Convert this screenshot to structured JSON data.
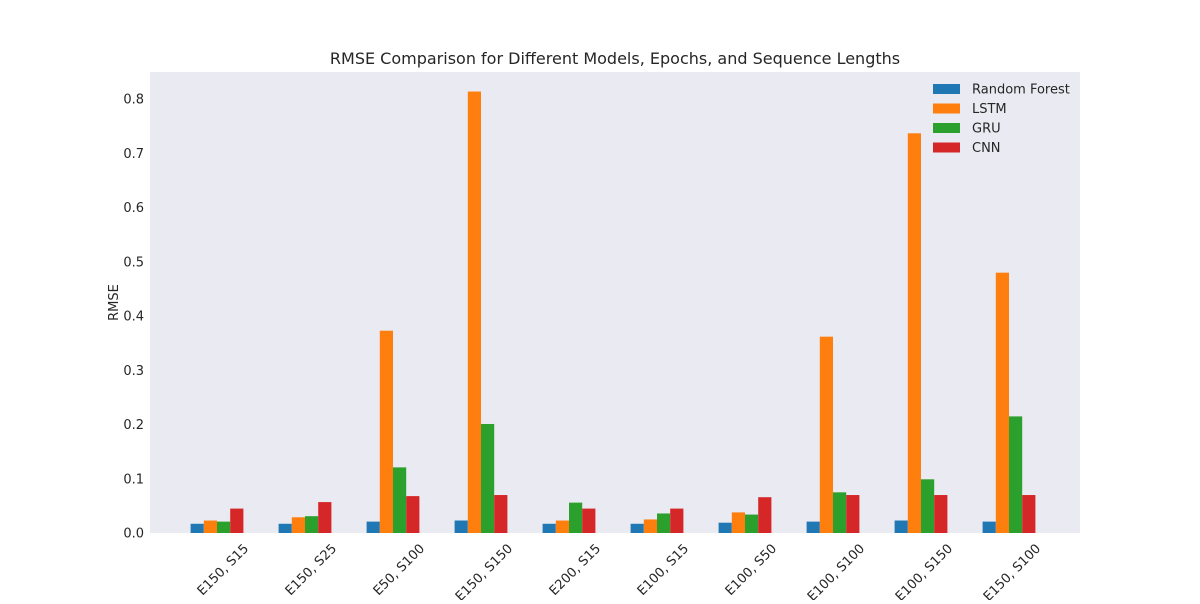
{
  "chart_data": {
    "type": "bar",
    "title": "RMSE Comparison for Different Models, Epochs, and Sequence Lengths",
    "xlabel": "",
    "ylabel": "RMSE",
    "ylim": [
      0,
      0.85
    ],
    "yticks": [
      0.0,
      0.1,
      0.2,
      0.3,
      0.4,
      0.5,
      0.6,
      0.7,
      0.8
    ],
    "ytick_labels": [
      "0.0",
      "0.1",
      "0.2",
      "0.3",
      "0.4",
      "0.5",
      "0.6",
      "0.7",
      "0.8"
    ],
    "grid": false,
    "legend_position": "top-right",
    "categories": [
      "E150, S15",
      "E150, S25",
      "E50, S100",
      "E150, S150",
      "E200, S15",
      "E100, S15",
      "E100, S50",
      "E100, S100",
      "E100, S150",
      "E150, S100"
    ],
    "series": [
      {
        "name": "Random Forest",
        "color": "#1f77b4",
        "values": [
          0.017,
          0.017,
          0.021,
          0.023,
          0.017,
          0.017,
          0.019,
          0.021,
          0.023,
          0.021
        ]
      },
      {
        "name": "LSTM",
        "color": "#ff7f0e",
        "values": [
          0.023,
          0.029,
          0.373,
          0.814,
          0.023,
          0.025,
          0.038,
          0.362,
          0.737,
          0.48
        ]
      },
      {
        "name": "GRU",
        "color": "#2ca02c",
        "values": [
          0.021,
          0.031,
          0.121,
          0.201,
          0.056,
          0.036,
          0.034,
          0.075,
          0.099,
          0.215
        ]
      },
      {
        "name": "CNN",
        "color": "#d62728",
        "values": [
          0.045,
          0.057,
          0.068,
          0.07,
          0.045,
          0.045,
          0.066,
          0.07,
          0.07,
          0.07
        ]
      }
    ],
    "plot_background": "#eaeaf2"
  }
}
